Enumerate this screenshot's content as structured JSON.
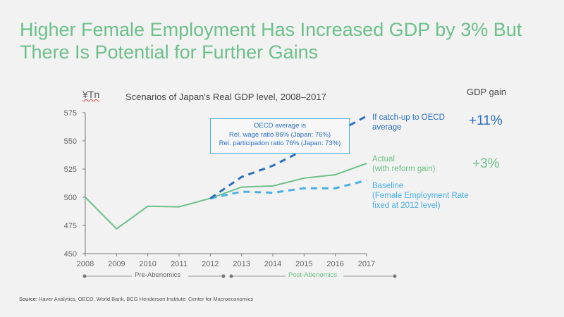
{
  "title": "Higher Female Employment Has Increased GDP by 3% But There Is Potential for Further Gains",
  "source": {
    "label": "Source",
    "text": ": Haver Analytics, OECD, World Bank, BCG Henderson Institute: Center for Macroeconomics"
  },
  "gain_header": "GDP gain",
  "annotation": [
    "OECD average is",
    "Rel. wage ratio 86% (Japan: 76%)",
    "Rel. participation ratio 76% (Japan: 73%)"
  ],
  "periods": [
    "Pre-Abenomics",
    "Post-Abenomics"
  ],
  "colors": {
    "actual": "#6cc08b",
    "oecd": "#2a6fc0",
    "baseline": "#4aaee8",
    "axis": "#777777"
  },
  "chart_data": {
    "type": "line",
    "title": "Scenarios of Japan's Real GDP level, 2008–2017",
    "ylabel": "¥Tn",
    "ylim": [
      450,
      575
    ],
    "yticks": [
      450,
      475,
      500,
      525,
      550,
      575
    ],
    "x": [
      "2008",
      "2009",
      "2010",
      "2011",
      "2012",
      "2013",
      "2014",
      "2015",
      "2016",
      "2017"
    ],
    "series": [
      {
        "name": "If catch-up to OECD average",
        "gain": "+11%",
        "style": "dashed",
        "color": "#2a6fc0",
        "values": [
          null,
          null,
          null,
          null,
          499,
          518,
          528,
          542,
          557,
          572
        ]
      },
      {
        "name": "Actual (with reform gain)",
        "gain": "+3%",
        "style": "solid",
        "color": "#6cc08b",
        "values": [
          500,
          472,
          492,
          491.5,
          499,
          509,
          510,
          517,
          520,
          530
        ]
      },
      {
        "name": "Baseline (Female Employment Rate fixed at 2012 level)",
        "gain": "",
        "style": "dashed",
        "color": "#4aaee8",
        "values": [
          null,
          null,
          null,
          null,
          499,
          505,
          504,
          508,
          508,
          515
        ]
      }
    ],
    "labels": [
      [
        "If catch-up to OECD",
        "average"
      ],
      [
        "Actual",
        "(with reform gain)"
      ],
      [
        "Baseline",
        "(Female Employment Rate",
        "fixed at 2012 level)"
      ]
    ]
  }
}
